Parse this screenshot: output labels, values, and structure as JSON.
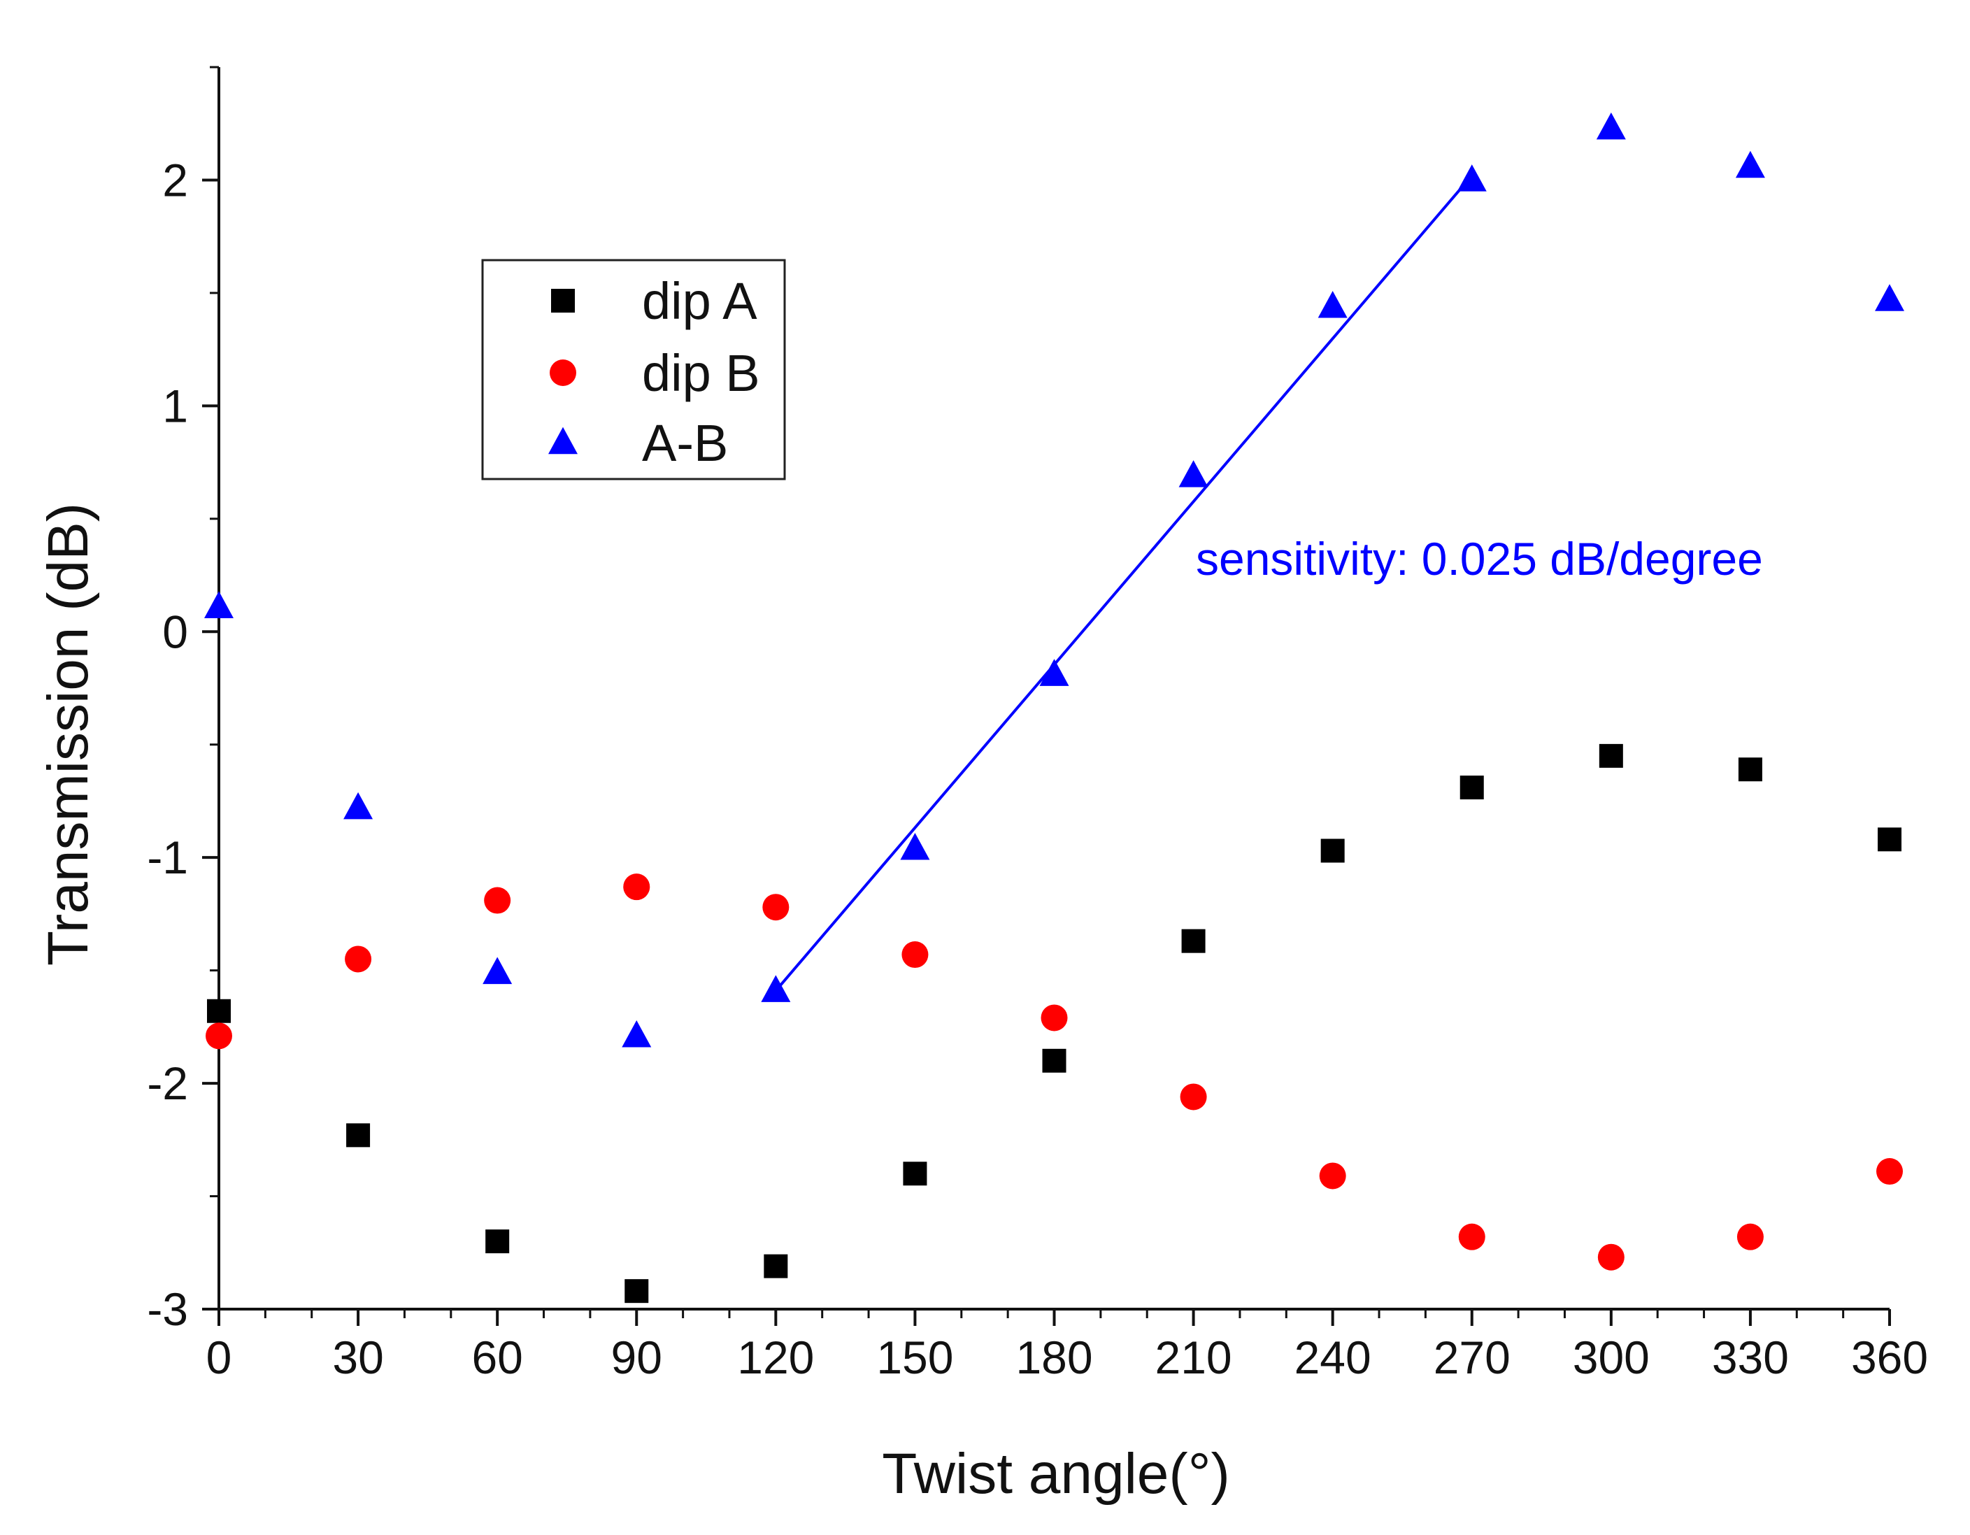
{
  "chart_data": {
    "type": "scatter",
    "title": "",
    "xlabel": "Twist angle(°)",
    "ylabel": "Transmission (dB)",
    "xlim": [
      0,
      360
    ],
    "ylim": [
      -3,
      2.5
    ],
    "xticks": [
      0,
      30,
      60,
      90,
      120,
      150,
      180,
      210,
      240,
      270,
      300,
      330,
      360
    ],
    "yticks": [
      -3,
      -2,
      -1,
      0,
      1,
      2
    ],
    "xtick_labels": [
      "0",
      "30",
      "60",
      "90",
      "120",
      "150",
      "180",
      "210",
      "240",
      "270",
      "300",
      "330",
      "360"
    ],
    "ytick_labels": [
      "-3",
      "-2",
      "-1",
      "0",
      "1",
      "2"
    ],
    "grid": false,
    "legend_position": "upper-left",
    "series": [
      {
        "name": "dip A",
        "marker": "square",
        "color": "#000000",
        "x": [
          0,
          30,
          60,
          90,
          120,
          150,
          180,
          210,
          240,
          270,
          300,
          330,
          360
        ],
        "y": [
          -1.68,
          -2.23,
          -2.7,
          -2.92,
          -2.81,
          -2.4,
          -1.9,
          -1.37,
          -0.97,
          -0.69,
          -0.55,
          -0.61,
          -0.92
        ]
      },
      {
        "name": "dip B",
        "marker": "circle",
        "color": "#ff0000",
        "x": [
          0,
          30,
          60,
          90,
          120,
          150,
          180,
          210,
          240,
          270,
          300,
          330,
          360
        ],
        "y": [
          -1.79,
          -1.45,
          -1.19,
          -1.13,
          -1.22,
          -1.43,
          -1.71,
          -2.06,
          -2.41,
          -2.68,
          -2.77,
          -2.68,
          -2.39
        ]
      },
      {
        "name": "A-B",
        "marker": "triangle",
        "color": "#0000ff",
        "x": [
          0,
          30,
          60,
          90,
          120,
          150,
          180,
          210,
          240,
          270,
          300,
          330,
          360
        ],
        "y": [
          0.11,
          -0.78,
          -1.51,
          -1.79,
          -1.59,
          -0.96,
          -0.19,
          0.69,
          1.44,
          2.0,
          2.23,
          2.06,
          1.47
        ]
      }
    ],
    "fit_line": {
      "color": "#0000ff",
      "x": [
        120,
        270
      ],
      "y": [
        -1.59,
        2.02
      ]
    },
    "annotation": {
      "text": "sensitivity: 0.025 dB/degree",
      "color": "#0000ff"
    }
  }
}
